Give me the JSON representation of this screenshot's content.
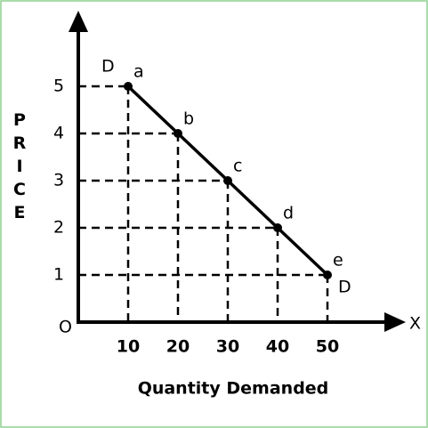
{
  "chart_data": {
    "type": "line",
    "x_label": "Quantity Demanded",
    "y_label": "PRICE",
    "origin_label": "O",
    "x_axis_end_label": "X",
    "curve_labels": [
      "D",
      "D"
    ],
    "x": [
      10,
      20,
      30,
      40,
      50
    ],
    "series": [
      {
        "name": "D",
        "color": "#000000",
        "values": [
          5,
          4,
          3,
          2,
          1
        ]
      }
    ],
    "point_labels": [
      "a",
      "b",
      "c",
      "d",
      "e"
    ],
    "xlim": [
      0,
      60
    ],
    "xticks": [
      10,
      20,
      30,
      40,
      50
    ],
    "ylim": [
      0,
      6
    ],
    "yticks": [
      1,
      2,
      3,
      4,
      5
    ],
    "guide_lines": true
  }
}
